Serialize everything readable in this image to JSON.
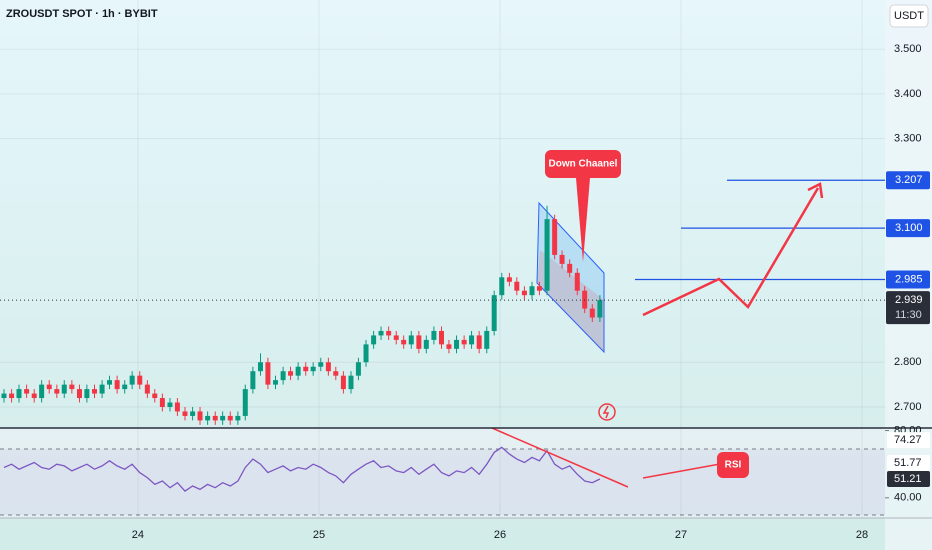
{
  "chart_data": {
    "type": "candlestick",
    "title": "ZROUSDT SPOT · 1h · BYBIT",
    "currency": "USDT",
    "x": [
      23.26,
      23.302,
      23.343,
      23.385,
      23.427,
      23.468,
      23.51,
      23.552,
      23.593,
      23.635,
      23.677,
      23.718,
      23.76,
      23.802,
      23.843,
      23.885,
      23.927,
      23.968,
      24.01,
      24.052,
      24.093,
      24.135,
      24.177,
      24.218,
      24.26,
      24.302,
      24.343,
      24.385,
      24.427,
      24.468,
      24.51,
      24.552,
      24.593,
      24.635,
      24.677,
      24.718,
      24.76,
      24.802,
      24.843,
      24.885,
      24.927,
      24.968,
      25.01,
      25.052,
      25.093,
      25.135,
      25.177,
      25.218,
      25.26,
      25.302,
      25.343,
      25.385,
      25.427,
      25.468,
      25.51,
      25.552,
      25.593,
      25.635,
      25.677,
      25.718,
      25.76,
      25.802,
      25.843,
      25.885,
      25.927,
      25.968,
      26.01,
      26.052,
      26.093,
      26.135,
      26.177,
      26.218,
      26.26,
      26.302,
      26.343,
      26.385,
      26.427,
      26.468,
      26.51,
      26.552
    ],
    "open": [
      2.72,
      2.73,
      2.72,
      2.74,
      2.73,
      2.72,
      2.75,
      2.74,
      2.73,
      2.75,
      2.74,
      2.72,
      2.74,
      2.73,
      2.75,
      2.76,
      2.74,
      2.75,
      2.77,
      2.75,
      2.73,
      2.72,
      2.7,
      2.71,
      2.69,
      2.68,
      2.69,
      2.67,
      2.68,
      2.67,
      2.68,
      2.67,
      2.68,
      2.74,
      2.78,
      2.8,
      2.75,
      2.76,
      2.78,
      2.77,
      2.79,
      2.78,
      2.79,
      2.8,
      2.78,
      2.77,
      2.74,
      2.77,
      2.8,
      2.84,
      2.86,
      2.87,
      2.86,
      2.85,
      2.84,
      2.86,
      2.83,
      2.85,
      2.87,
      2.84,
      2.83,
      2.85,
      2.84,
      2.86,
      2.83,
      2.87,
      2.95,
      2.99,
      2.98,
      2.96,
      2.95,
      2.97,
      2.96,
      3.12,
      3.04,
      3.02,
      3.0,
      2.96,
      2.92,
      2.9
    ],
    "high": [
      2.74,
      2.74,
      2.75,
      2.75,
      2.74,
      2.76,
      2.76,
      2.75,
      2.76,
      2.76,
      2.75,
      2.75,
      2.75,
      2.76,
      2.77,
      2.77,
      2.76,
      2.78,
      2.78,
      2.76,
      2.74,
      2.73,
      2.72,
      2.72,
      2.7,
      2.7,
      2.7,
      2.69,
      2.69,
      2.69,
      2.69,
      2.69,
      2.75,
      2.79,
      2.82,
      2.81,
      2.77,
      2.79,
      2.79,
      2.8,
      2.8,
      2.8,
      2.81,
      2.81,
      2.79,
      2.78,
      2.78,
      2.81,
      2.85,
      2.87,
      2.88,
      2.88,
      2.87,
      2.86,
      2.87,
      2.87,
      2.86,
      2.88,
      2.88,
      2.85,
      2.86,
      2.86,
      2.87,
      2.87,
      2.88,
      2.96,
      3.0,
      3.0,
      2.99,
      2.97,
      2.98,
      2.98,
      3.15,
      3.13,
      3.05,
      3.03,
      3.01,
      2.97,
      2.93,
      2.95
    ],
    "low": [
      2.71,
      2.71,
      2.71,
      2.72,
      2.71,
      2.71,
      2.73,
      2.72,
      2.72,
      2.73,
      2.71,
      2.71,
      2.72,
      2.72,
      2.74,
      2.73,
      2.73,
      2.74,
      2.74,
      2.72,
      2.71,
      2.69,
      2.69,
      2.68,
      2.67,
      2.67,
      2.66,
      2.66,
      2.66,
      2.66,
      2.66,
      2.66,
      2.67,
      2.73,
      2.77,
      2.74,
      2.74,
      2.75,
      2.76,
      2.76,
      2.77,
      2.77,
      2.78,
      2.77,
      2.76,
      2.73,
      2.73,
      2.76,
      2.79,
      2.83,
      2.85,
      2.85,
      2.84,
      2.83,
      2.83,
      2.82,
      2.82,
      2.84,
      2.83,
      2.82,
      2.82,
      2.83,
      2.83,
      2.82,
      2.82,
      2.86,
      2.94,
      2.97,
      2.95,
      2.94,
      2.94,
      2.95,
      2.95,
      3.03,
      3.01,
      2.99,
      2.95,
      2.91,
      2.89,
      2.89
    ],
    "close": [
      2.73,
      2.72,
      2.74,
      2.73,
      2.72,
      2.75,
      2.74,
      2.73,
      2.75,
      2.74,
      2.72,
      2.74,
      2.73,
      2.75,
      2.76,
      2.74,
      2.75,
      2.77,
      2.75,
      2.73,
      2.72,
      2.7,
      2.71,
      2.69,
      2.68,
      2.69,
      2.67,
      2.68,
      2.67,
      2.68,
      2.67,
      2.68,
      2.74,
      2.78,
      2.8,
      2.75,
      2.76,
      2.78,
      2.77,
      2.79,
      2.78,
      2.79,
      2.8,
      2.78,
      2.77,
      2.74,
      2.77,
      2.8,
      2.84,
      2.86,
      2.87,
      2.86,
      2.85,
      2.84,
      2.86,
      2.83,
      2.85,
      2.87,
      2.84,
      2.83,
      2.85,
      2.84,
      2.86,
      2.83,
      2.87,
      2.95,
      2.99,
      2.98,
      2.96,
      2.95,
      2.97,
      2.96,
      3.12,
      3.04,
      3.02,
      3.0,
      2.96,
      2.92,
      2.9,
      2.939
    ],
    "up_color": "#089981",
    "down_color": "#f23645",
    "xlim": [
      23.238,
      28.127
    ],
    "xticks": [
      24,
      25,
      26,
      27,
      28
    ],
    "ylim": [
      2.653,
      3.61
    ],
    "yticks": [
      {
        "value": 3.5,
        "label": "3.500"
      },
      {
        "value": 3.4,
        "label": "3.400"
      },
      {
        "value": 3.3,
        "label": "3.300"
      },
      {
        "value": 2.8,
        "label": "2.800"
      },
      {
        "value": 2.7,
        "label": "2.700"
      }
    ],
    "grid": true,
    "levels": [
      {
        "value": 3.207,
        "label": "3.207"
      },
      {
        "value": 3.1,
        "label": "3.100"
      },
      {
        "value": 2.985,
        "label": "2.985"
      }
    ],
    "level_color": "#1e53e5",
    "last_price": {
      "value": 2.939,
      "label": "2.939",
      "countdown": "11:30"
    },
    "annotations": [
      "Down Chaanel",
      "RSI"
    ],
    "rsi": {
      "values": [
        58,
        60,
        57,
        59,
        61,
        58,
        57,
        60,
        59,
        56,
        58,
        60,
        57,
        59,
        62,
        59,
        57,
        60,
        55,
        52,
        48,
        50,
        46,
        49,
        44,
        47,
        45,
        48,
        46,
        49,
        47,
        50,
        58,
        63,
        60,
        55,
        57,
        59,
        56,
        58,
        57,
        60,
        58,
        55,
        53,
        49,
        54,
        57,
        60,
        62,
        58,
        59,
        56,
        55,
        58,
        54,
        57,
        60,
        55,
        53,
        56,
        55,
        58,
        54,
        60,
        67,
        70,
        66,
        63,
        61,
        64,
        62,
        68,
        60,
        57,
        59,
        54,
        50,
        49,
        51.21
      ],
      "color": "#7e57c2",
      "ylim": [
        28,
        81.5
      ],
      "yticks": [
        {
          "value": 80,
          "label": "80.00"
        },
        {
          "value": 40,
          "label": "40.00"
        }
      ],
      "badges": [
        {
          "value": 74.27,
          "label": "74.27"
        },
        {
          "value": 51.77,
          "label": "51.77"
        },
        {
          "value": 51.21,
          "label": "51.21"
        }
      ]
    }
  }
}
